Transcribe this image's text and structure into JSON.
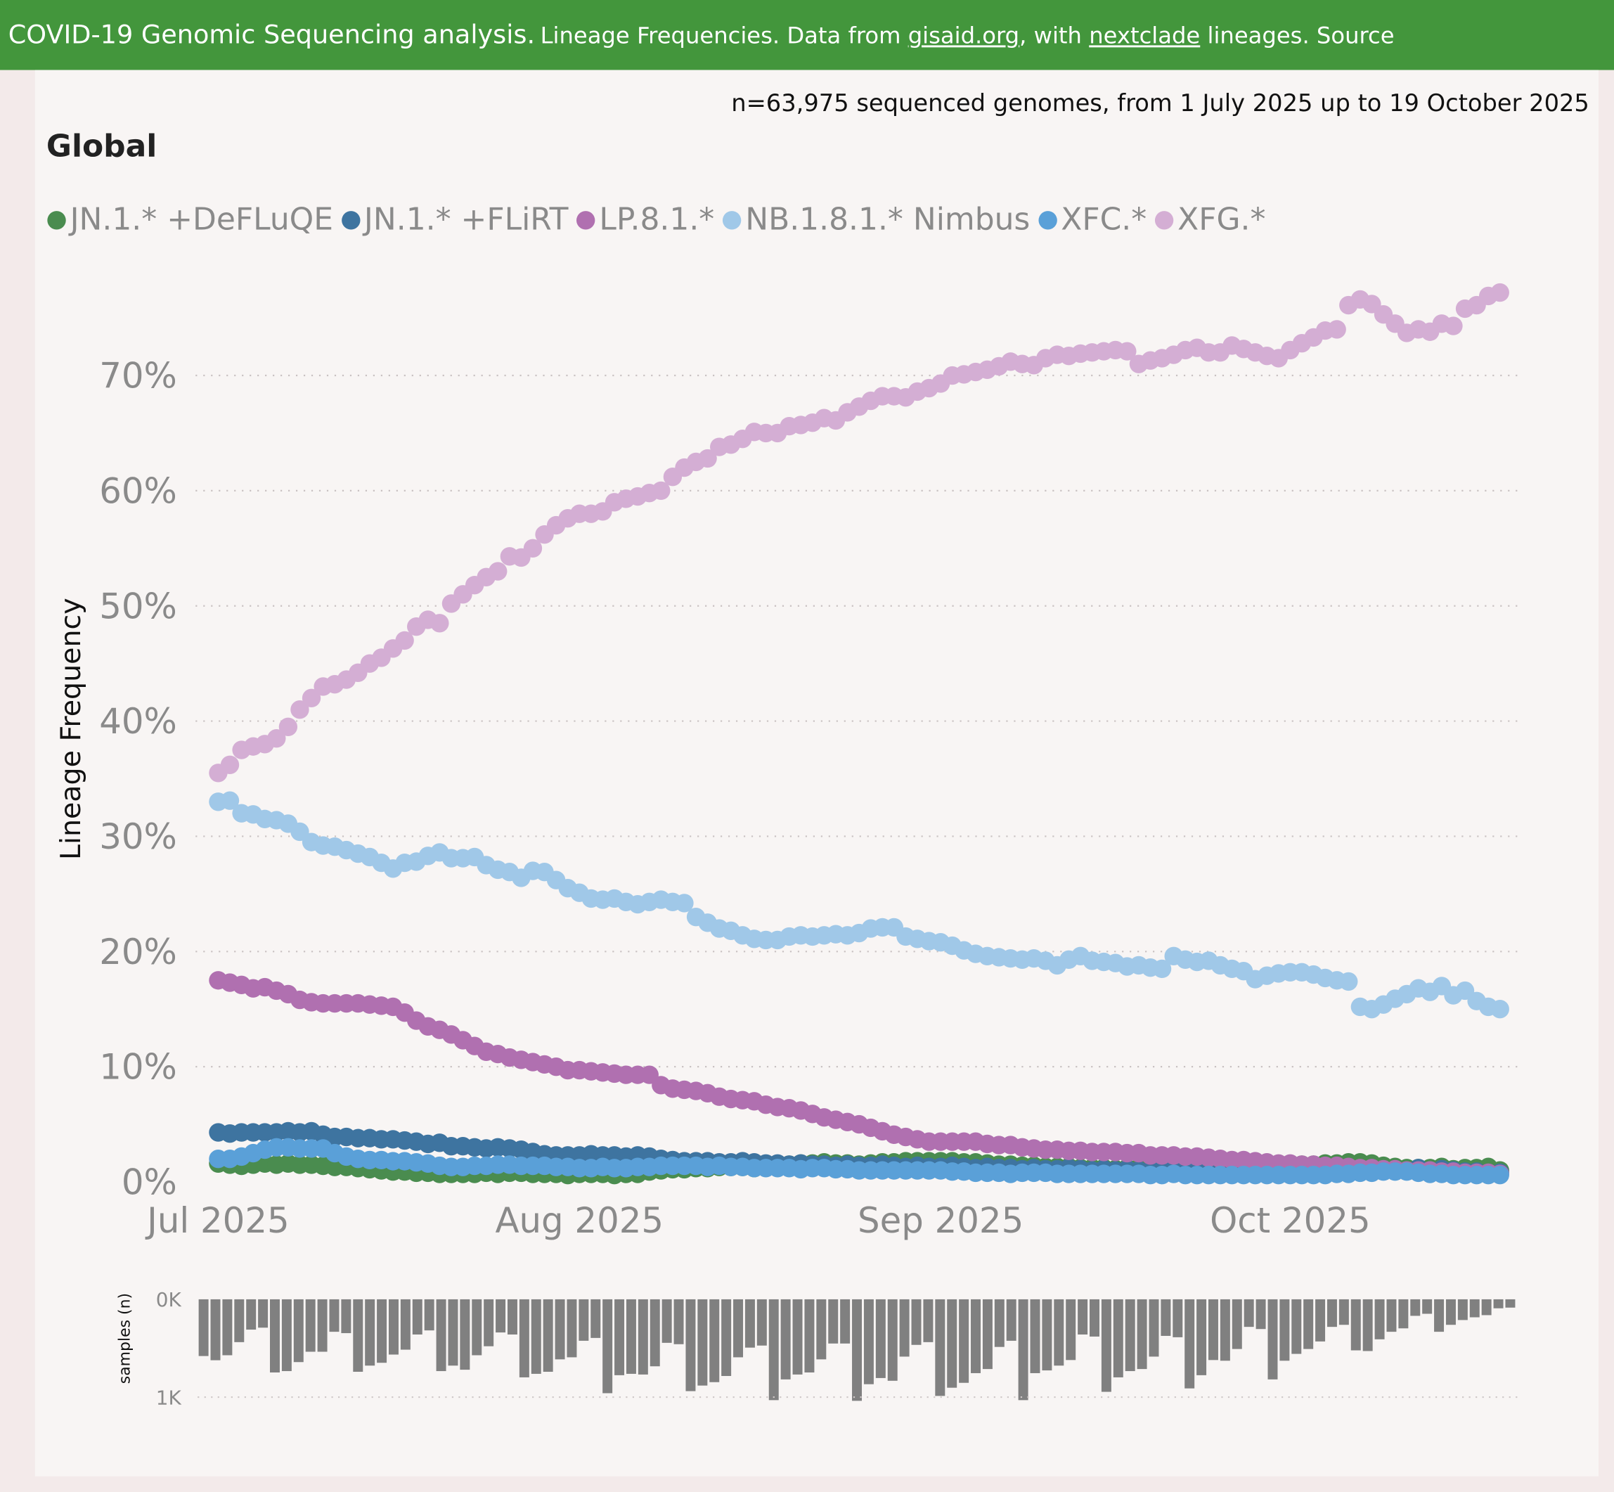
{
  "header": {
    "title": "COVID-19 Genomic Sequencing analysis.",
    "text1": "Lineage Frequencies. Data from ",
    "link1": "gisaid.org",
    "text2": ", with ",
    "link2": "nextclade",
    "text3": " lineages. Source"
  },
  "subtitle": "n=63,975 sequenced genomes, from 1 July 2025 up to 19 October 2025",
  "region": "Global",
  "chart_data": [
    {
      "type": "scatter",
      "title": "Global",
      "ylabel": "Lineage Frequency",
      "xlabel": "",
      "x_start": "2025-07-01",
      "x_step": "1 day",
      "x_ticks": [
        "Jul 2025",
        "Aug 2025",
        "Sep 2025",
        "Oct 2025"
      ],
      "y_ticks": [
        "0%",
        "10%",
        "20%",
        "30%",
        "40%",
        "50%",
        "60%",
        "70%"
      ],
      "ylim": [
        0,
        78
      ],
      "grid": "horizontal dotted",
      "legend": "top",
      "series": [
        {
          "name": "JN.1.* +DeFLuQE",
          "color": "#4a8c4f",
          "values": [
            1.6,
            1.5,
            1.4,
            1.5,
            1.6,
            1.5,
            1.6,
            1.5,
            1.5,
            1.4,
            1.3,
            1.3,
            1.2,
            1.1,
            1.0,
            0.9,
            0.9,
            0.8,
            0.8,
            0.7,
            0.7,
            0.7,
            0.7,
            0.8,
            0.7,
            0.8,
            0.8,
            0.7,
            0.7,
            0.7,
            0.6,
            0.7,
            0.7,
            0.7,
            0.6,
            0.7,
            0.7,
            0.9,
            1.0,
            1.1,
            1.1,
            1.2,
            1.2,
            1.3,
            1.3,
            1.3,
            1.2,
            1.3,
            1.4,
            1.5,
            1.6,
            1.6,
            1.7,
            1.6,
            1.6,
            1.5,
            1.6,
            1.7,
            1.7,
            1.8,
            1.8,
            1.8,
            1.8,
            1.8,
            1.7,
            1.7,
            1.6,
            1.5,
            1.5,
            1.4,
            1.4,
            1.3,
            1.3,
            1.3,
            1.2,
            1.2,
            1.2,
            1.1,
            1.2,
            1.2,
            1.1,
            1.1,
            1.1,
            1.2,
            1.2,
            1.2,
            1.2,
            1.3,
            1.3,
            1.3,
            1.4,
            1.4,
            1.4,
            1.5,
            1.5,
            1.6,
            1.6,
            1.7,
            1.7,
            1.6,
            1.4,
            1.3,
            1.2,
            1.2,
            1.2,
            1.3,
            1.1,
            1.2,
            1.2,
            1.3,
            1.0
          ]
        },
        {
          "name": "JN.1.* +FLiRT",
          "color": "#3e74a0",
          "values": [
            4.3,
            4.2,
            4.3,
            4.3,
            4.3,
            4.3,
            4.4,
            4.3,
            4.4,
            4.1,
            3.9,
            3.9,
            3.8,
            3.8,
            3.7,
            3.7,
            3.6,
            3.5,
            3.3,
            3.4,
            3.1,
            3.1,
            3.0,
            2.9,
            3.0,
            2.9,
            2.8,
            2.6,
            2.4,
            2.3,
            2.3,
            2.3,
            2.4,
            2.3,
            2.3,
            2.2,
            2.3,
            2.2,
            2.0,
            1.9,
            1.8,
            1.8,
            1.8,
            1.7,
            1.7,
            1.8,
            1.7,
            1.6,
            1.6,
            1.5,
            1.6,
            1.5,
            1.5,
            1.4,
            1.5,
            1.4,
            1.4,
            1.5,
            1.4,
            1.3,
            1.4,
            1.3,
            1.3,
            1.4,
            1.3,
            1.2,
            1.3,
            1.2,
            1.2,
            1.1,
            1.2,
            1.1,
            1.1,
            1.2,
            1.1,
            1.0,
            1.1,
            1.0,
            1.1,
            1.0,
            1.0,
            1.1,
            1.0,
            1.0,
            1.0,
            1.1,
            1.0,
            1.0,
            1.0,
            0.9,
            1.0,
            1.0,
            1.0,
            1.0,
            1.0,
            1.1,
            1.0,
            1.0,
            1.1,
            1.2,
            1.0,
            1.1,
            1.0,
            1.2,
            1.0,
            1.1,
            1.0,
            0.9,
            0.9,
            0.8,
            0.8
          ]
        },
        {
          "name": "LP.8.1.*",
          "color": "#b070b0",
          "values": [
            17.5,
            17.3,
            17.1,
            16.8,
            16.9,
            16.6,
            16.3,
            15.8,
            15.6,
            15.5,
            15.5,
            15.5,
            15.5,
            15.4,
            15.3,
            15.2,
            14.7,
            14.0,
            13.5,
            13.2,
            12.8,
            12.3,
            11.8,
            11.3,
            11.1,
            10.8,
            10.6,
            10.4,
            10.2,
            10.0,
            9.7,
            9.7,
            9.6,
            9.5,
            9.4,
            9.3,
            9.3,
            9.3,
            8.4,
            8.1,
            8.0,
            7.9,
            7.7,
            7.4,
            7.2,
            7.1,
            7.0,
            6.7,
            6.5,
            6.4,
            6.2,
            5.9,
            5.6,
            5.4,
            5.2,
            5.0,
            4.7,
            4.4,
            4.1,
            3.9,
            3.7,
            3.5,
            3.5,
            3.5,
            3.5,
            3.5,
            3.3,
            3.2,
            3.2,
            3.0,
            2.9,
            2.8,
            2.8,
            2.7,
            2.7,
            2.6,
            2.6,
            2.6,
            2.5,
            2.5,
            2.3,
            2.3,
            2.3,
            2.2,
            2.2,
            2.1,
            2.0,
            1.9,
            1.9,
            1.8,
            1.7,
            1.6,
            1.6,
            1.5,
            1.5,
            1.4,
            1.4,
            1.3,
            1.2,
            1.2,
            1.1,
            1.1,
            1.0,
            1.0,
            1.0,
            0.9,
            0.9,
            0.8,
            0.8,
            0.8,
            0.7
          ]
        },
        {
          "name": "NB.1.8.1.* Nimbus",
          "color": "#a0c8e8",
          "values": [
            33.0,
            33.1,
            32.0,
            31.9,
            31.5,
            31.4,
            31.1,
            30.4,
            29.5,
            29.2,
            29.1,
            28.8,
            28.5,
            28.2,
            27.7,
            27.2,
            27.7,
            27.8,
            28.3,
            28.6,
            28.1,
            28.1,
            28.2,
            27.5,
            27.1,
            26.9,
            26.4,
            27.0,
            26.9,
            26.2,
            25.5,
            25.1,
            24.6,
            24.5,
            24.6,
            24.3,
            24.1,
            24.3,
            24.5,
            24.3,
            24.2,
            23.0,
            22.5,
            22.0,
            21.8,
            21.4,
            21.1,
            21.0,
            21.0,
            21.3,
            21.4,
            21.3,
            21.4,
            21.5,
            21.4,
            21.6,
            22.0,
            22.1,
            22.1,
            21.3,
            21.1,
            20.9,
            20.8,
            20.5,
            20.1,
            19.8,
            19.6,
            19.5,
            19.4,
            19.3,
            19.4,
            19.2,
            18.8,
            19.3,
            19.6,
            19.2,
            19.1,
            19.0,
            18.7,
            18.8,
            18.6,
            18.5,
            19.6,
            19.3,
            19.1,
            19.2,
            18.8,
            18.5,
            18.3,
            17.6,
            17.9,
            18.1,
            18.2,
            18.2,
            18.0,
            17.7,
            17.5,
            17.4,
            15.2,
            15.0,
            15.4,
            15.9,
            16.3,
            16.8,
            16.5,
            17.0,
            16.2,
            16.6,
            15.7,
            15.2,
            15.0
          ]
        },
        {
          "name": "XFC.*",
          "color": "#5aa0d8",
          "values": [
            2.0,
            2.0,
            2.2,
            2.5,
            2.8,
            3.0,
            3.0,
            2.9,
            2.9,
            2.9,
            2.5,
            2.2,
            2.0,
            1.9,
            1.9,
            1.8,
            1.8,
            1.7,
            1.6,
            1.4,
            1.3,
            1.3,
            1.4,
            1.4,
            1.5,
            1.5,
            1.4,
            1.4,
            1.4,
            1.3,
            1.3,
            1.2,
            1.2,
            1.3,
            1.2,
            1.2,
            1.3,
            1.3,
            1.4,
            1.4,
            1.4,
            1.4,
            1.3,
            1.4,
            1.3,
            1.3,
            1.2,
            1.2,
            1.2,
            1.2,
            1.1,
            1.2,
            1.2,
            1.1,
            1.1,
            1.0,
            1.0,
            1.0,
            1.0,
            1.0,
            1.0,
            1.0,
            1.0,
            0.9,
            0.9,
            0.8,
            0.8,
            0.8,
            0.7,
            0.8,
            0.8,
            0.8,
            0.7,
            0.7,
            0.7,
            0.7,
            0.7,
            0.7,
            0.7,
            0.7,
            0.6,
            0.6,
            0.7,
            0.6,
            0.6,
            0.6,
            0.6,
            0.6,
            0.6,
            0.6,
            0.6,
            0.6,
            0.6,
            0.6,
            0.6,
            0.6,
            0.7,
            0.7,
            0.8,
            0.8,
            0.9,
            0.9,
            0.9,
            0.8,
            0.7,
            0.7,
            0.6,
            0.6,
            0.6,
            0.6,
            0.6
          ]
        },
        {
          "name": "XFG.*",
          "color": "#d4aed4",
          "values": [
            35.5,
            36.2,
            37.5,
            37.8,
            38.0,
            38.5,
            39.5,
            41.0,
            42.0,
            43.0,
            43.2,
            43.6,
            44.2,
            45.0,
            45.5,
            46.3,
            47.0,
            48.2,
            48.8,
            48.5,
            50.2,
            51.0,
            51.8,
            52.5,
            53.0,
            54.3,
            54.2,
            55.0,
            56.2,
            57.0,
            57.6,
            58.0,
            58.0,
            58.2,
            59.0,
            59.3,
            59.5,
            59.8,
            60.0,
            61.2,
            62.0,
            62.5,
            62.8,
            63.8,
            64.0,
            64.5,
            65.1,
            65.0,
            65.0,
            65.6,
            65.7,
            65.9,
            66.3,
            66.1,
            66.8,
            67.3,
            67.8,
            68.2,
            68.2,
            68.1,
            68.6,
            68.9,
            69.3,
            70.0,
            70.1,
            70.3,
            70.5,
            70.8,
            71.2,
            71.0,
            70.9,
            71.5,
            71.8,
            71.7,
            71.9,
            72.0,
            72.1,
            72.2,
            72.1,
            71.0,
            71.3,
            71.5,
            71.8,
            72.2,
            72.4,
            72.0,
            72.0,
            72.6,
            72.3,
            72.0,
            71.7,
            71.5,
            72.2,
            72.8,
            73.3,
            73.9,
            74.0,
            76.1,
            76.6,
            76.2,
            75.3,
            74.5,
            73.7,
            74.0,
            73.8,
            74.5,
            74.3,
            75.8,
            76.1,
            76.9,
            77.2
          ]
        }
      ]
    },
    {
      "type": "bar",
      "ylabel": "samples (n)",
      "y_ticks": [
        "0K",
        "1K"
      ],
      "ylim": [
        0,
        1000
      ],
      "orientation": "downward",
      "x_start": "2025-07-01",
      "x_step": "1 day",
      "color": "#808080",
      "values": [
        580,
        623,
        572,
        438,
        310,
        290,
        748,
        734,
        642,
        536,
        536,
        332,
        346,
        741,
        678,
        649,
        565,
        515,
        360,
        318,
        734,
        678,
        720,
        572,
        480,
        339,
        360,
        798,
        762,
        741,
        614,
        593,
        424,
        395,
        960,
        776,
        762,
        769,
        685,
        445,
        459,
        939,
        882,
        847,
        784,
        593,
        494,
        473,
        1031,
        819,
        769,
        748,
        614,
        452,
        452,
        1038,
        868,
        805,
        833,
        586,
        466,
        438,
        988,
        904,
        854,
        755,
        713,
        487,
        424,
        1031,
        755,
        727,
        678,
        621,
        360,
        381,
        946,
        798,
        734,
        713,
        586,
        374,
        388,
        911,
        776,
        621,
        628,
        508,
        282,
        304,
        819,
        628,
        558,
        508,
        431,
        282,
        261,
        522,
        529,
        409,
        332,
        297,
        169,
        148,
        332,
        261,
        212,
        184,
        162,
        92,
        85
      ]
    }
  ]
}
